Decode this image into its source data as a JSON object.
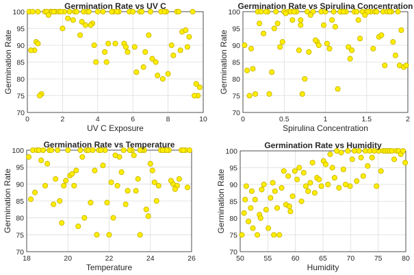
{
  "chart_data": [
    {
      "type": "scatter",
      "title": "Germination Rate vs UV C",
      "xlabel": "UV C Exposure",
      "ylabel": "Germination Rate",
      "xlim": [
        0,
        10
      ],
      "ylim": [
        70,
        100
      ],
      "xticks": [
        0,
        2,
        4,
        6,
        8,
        10
      ],
      "yticks": [
        70,
        75,
        80,
        85,
        90,
        95,
        100
      ],
      "grid": true,
      "x": [
        0.1,
        0.3,
        0.4,
        0.6,
        0.8,
        1.0,
        1.3,
        1.6,
        1.8,
        2.1,
        2.4,
        2.7,
        3.0,
        3.2,
        3.4,
        3.7,
        4.0,
        4.3,
        4.6,
        4.9,
        5.2,
        5.5,
        5.8,
        6.1,
        6.4,
        6.7,
        7.0,
        7.3,
        7.6,
        7.9,
        8.2,
        8.5,
        8.8,
        9.1,
        9.4,
        9.7,
        0.2,
        0.5,
        0.7,
        1.1,
        1.4,
        1.9,
        2.3,
        2.8,
        3.1,
        3.5,
        3.9,
        4.4,
        4.8,
        5.1,
        5.6,
        6.0,
        6.5,
        6.9,
        7.4,
        7.8,
        8.3,
        8.7,
        9.0,
        9.5,
        9.8,
        0.6,
        1.2,
        2.0,
        2.6,
        3.3,
        3.8,
        4.5,
        5.0,
        5.7,
        6.2,
        7.1,
        7.7,
        8.0,
        8.6,
        9.2,
        9.6,
        1.5,
        3.6,
        6.6
      ],
      "y": [
        100,
        100,
        88.5,
        100,
        75.5,
        100,
        100,
        100,
        100,
        100,
        100,
        100,
        93,
        100,
        100,
        96.5,
        100,
        100,
        90.5,
        100,
        100,
        90.5,
        100,
        89.5,
        100,
        88,
        100,
        85,
        100,
        100,
        90,
        100,
        94,
        89.5,
        100,
        75,
        88.5,
        91,
        75,
        100,
        100,
        100,
        98,
        100,
        97,
        100,
        85,
        88,
        100,
        100,
        89.5,
        100,
        100,
        93,
        81,
        100,
        87,
        88.5,
        94.5,
        75,
        77.5,
        90.5,
        99,
        95,
        97.5,
        96,
        90,
        85,
        90.5,
        88,
        82,
        86,
        80,
        81.5,
        100,
        92.5,
        78.5,
        100,
        96,
        83.5
      ]
    },
    {
      "type": "scatter",
      "title": "Germination Rate vs Spirulina Concentration",
      "xlabel": "Spirulina Concentration",
      "ylabel": "Germination Rate",
      "xlim": [
        0,
        2
      ],
      "ylim": [
        70,
        100
      ],
      "xticks": [
        0,
        0.5,
        1,
        1.5,
        2
      ],
      "yticks": [
        70,
        75,
        80,
        85,
        90,
        95,
        100
      ],
      "grid": true,
      "x": [
        0.02,
        0.05,
        0.1,
        0.15,
        0.2,
        0.25,
        0.3,
        0.35,
        0.4,
        0.45,
        0.5,
        0.55,
        0.6,
        0.65,
        0.7,
        0.75,
        0.8,
        0.85,
        0.9,
        0.95,
        1.0,
        1.05,
        1.1,
        1.15,
        1.2,
        1.25,
        1.3,
        1.35,
        1.4,
        1.45,
        1.5,
        1.55,
        1.6,
        1.65,
        1.7,
        1.75,
        1.8,
        1.85,
        1.9,
        1.95,
        0.08,
        0.18,
        0.28,
        0.38,
        0.48,
        0.58,
        0.68,
        0.78,
        0.88,
        0.98,
        1.08,
        1.18,
        1.28,
        1.38,
        1.48,
        1.58,
        1.68,
        1.78,
        1.88,
        1.98,
        0.12,
        0.32,
        0.52,
        0.72,
        0.92,
        1.12,
        1.32,
        1.52,
        1.72,
        1.92,
        0.42,
        0.62,
        0.82,
        1.02,
        1.22,
        1.42,
        1.62,
        1.82,
        0.22,
        0.7
      ],
      "y": [
        90,
        82.5,
        89,
        75.5,
        96.5,
        93.5,
        100,
        82,
        100,
        89.5,
        100,
        100,
        97.5,
        100,
        96,
        80,
        88,
        100,
        91,
        100,
        100,
        89,
        100,
        77,
        100,
        100,
        86,
        100,
        97.5,
        100,
        100,
        100,
        100,
        92.5,
        100,
        100,
        100,
        87,
        84,
        83.5,
        75,
        100,
        100,
        95,
        91,
        100,
        88.5,
        100,
        91.5,
        96,
        97.5,
        100,
        89.5,
        100,
        99,
        89,
        93,
        100,
        100,
        84,
        83,
        75.5,
        99.5,
        75.5,
        90,
        95.5,
        88.5,
        100,
        84,
        94.5,
        96.5,
        100,
        99,
        90.5,
        100,
        92,
        100,
        91,
        100,
        97.5
      ]
    },
    {
      "type": "scatter",
      "title": "Germination Rate vs Temperature",
      "xlabel": "Temperature",
      "ylabel": "Germination Rate",
      "xlim": [
        18,
        26
      ],
      "ylim": [
        70,
        100
      ],
      "xticks": [
        18,
        20,
        22,
        24,
        26
      ],
      "yticks": [
        70,
        75,
        80,
        85,
        90,
        95,
        100
      ],
      "grid": true,
      "x": [
        18.1,
        18.3,
        18.5,
        18.7,
        18.9,
        19.1,
        19.3,
        19.5,
        19.7,
        19.9,
        20.1,
        20.3,
        20.5,
        20.7,
        20.9,
        21.1,
        21.3,
        21.5,
        21.7,
        21.9,
        22.1,
        22.3,
        22.5,
        22.7,
        22.9,
        23.1,
        23.3,
        23.5,
        23.7,
        23.9,
        24.1,
        24.3,
        24.5,
        24.7,
        24.9,
        25.1,
        25.3,
        25.5,
        25.7,
        25.9,
        18.2,
        18.6,
        19.0,
        19.4,
        19.8,
        20.2,
        20.6,
        21.0,
        21.4,
        21.8,
        22.2,
        22.6,
        23.0,
        23.4,
        23.8,
        24.2,
        24.6,
        25.0,
        25.4,
        25.8,
        18.4,
        18.8,
        19.2,
        19.6,
        20.0,
        20.4,
        20.8,
        21.2,
        21.6,
        22.0,
        22.4,
        22.8,
        23.2,
        23.6,
        24.0,
        24.4,
        24.8,
        25.2,
        25.6,
        23.5
      ],
      "y": [
        98,
        100,
        100,
        97,
        89.5,
        100,
        84,
        100,
        78.5,
        91,
        92.5,
        89.5,
        77.5,
        98,
        100,
        84.5,
        94,
        100,
        95.5,
        84.5,
        90.5,
        98.5,
        98,
        100,
        88,
        100,
        88,
        75,
        100,
        80.5,
        94,
        85,
        100,
        100,
        100,
        90,
        89.5,
        100,
        100,
        100,
        85.5,
        100,
        96,
        91.5,
        89.5,
        93,
        100,
        100,
        75,
        100,
        80,
        93.5,
        100,
        91.5,
        82.5,
        90.5,
        100,
        91,
        91.5,
        89,
        87.5,
        100,
        100,
        85,
        100,
        94,
        80,
        100,
        100,
        75,
        89.5,
        84,
        98.5,
        100,
        96,
        89.5,
        100,
        88.5,
        100,
        100
      ]
    },
    {
      "type": "scatter",
      "title": "Germination Rate vs Humidity",
      "xlabel": "Humidity",
      "ylabel": "Germination Rate",
      "xlim": [
        50,
        80
      ],
      "ylim": [
        70,
        100
      ],
      "xticks": [
        50,
        55,
        60,
        65,
        70,
        75,
        80
      ],
      "yticks": [
        70,
        75,
        80,
        85,
        90,
        95,
        100
      ],
      "grid": true,
      "x": [
        50.3,
        50.7,
        51.1,
        51.5,
        51.9,
        52.3,
        52.7,
        53.1,
        53.5,
        53.9,
        54.3,
        54.7,
        55.1,
        55.5,
        55.9,
        56.3,
        56.7,
        57.1,
        57.5,
        57.9,
        58.3,
        58.7,
        59.1,
        59.5,
        59.9,
        60.3,
        60.7,
        61.1,
        61.5,
        61.9,
        62.3,
        62.7,
        63.1,
        63.5,
        63.9,
        64.3,
        64.7,
        65.1,
        65.5,
        65.9,
        66.3,
        66.7,
        67.1,
        67.5,
        67.9,
        68.3,
        68.7,
        69.1,
        69.5,
        69.9,
        70.3,
        70.7,
        71.1,
        71.5,
        71.9,
        72.3,
        72.7,
        73.1,
        73.5,
        73.9,
        74.3,
        74.7,
        75.1,
        75.5,
        75.9,
        76.3,
        76.7,
        77.1,
        77.5,
        77.9,
        78.3,
        78.7,
        79.1,
        79.5,
        79.9,
        50.9,
        52.1,
        53.7,
        56.1,
        58.9
      ],
      "y": [
        75,
        81.5,
        89.5,
        79,
        83,
        77,
        85.5,
        75,
        81,
        88.5,
        90,
        82.5,
        77,
        86,
        90.5,
        88,
        83,
        75,
        89,
        94,
        84,
        92.5,
        82,
        86.5,
        94,
        91.5,
        95,
        85,
        93.5,
        89.5,
        88,
        90.5,
        96.5,
        87.5,
        92,
        91.5,
        89.5,
        97,
        96,
        90,
        99,
        95,
        92,
        100,
        89,
        99.5,
        94.5,
        90,
        100,
        89.5,
        97.5,
        100,
        91,
        100,
        98,
        92.5,
        100,
        95.5,
        100,
        98,
        100,
        89.5,
        100,
        94,
        100,
        100,
        100,
        100,
        100,
        97.5,
        100,
        100,
        99,
        100,
        96.5,
        85.5,
        88,
        80,
        75,
        83.5
      ]
    }
  ]
}
